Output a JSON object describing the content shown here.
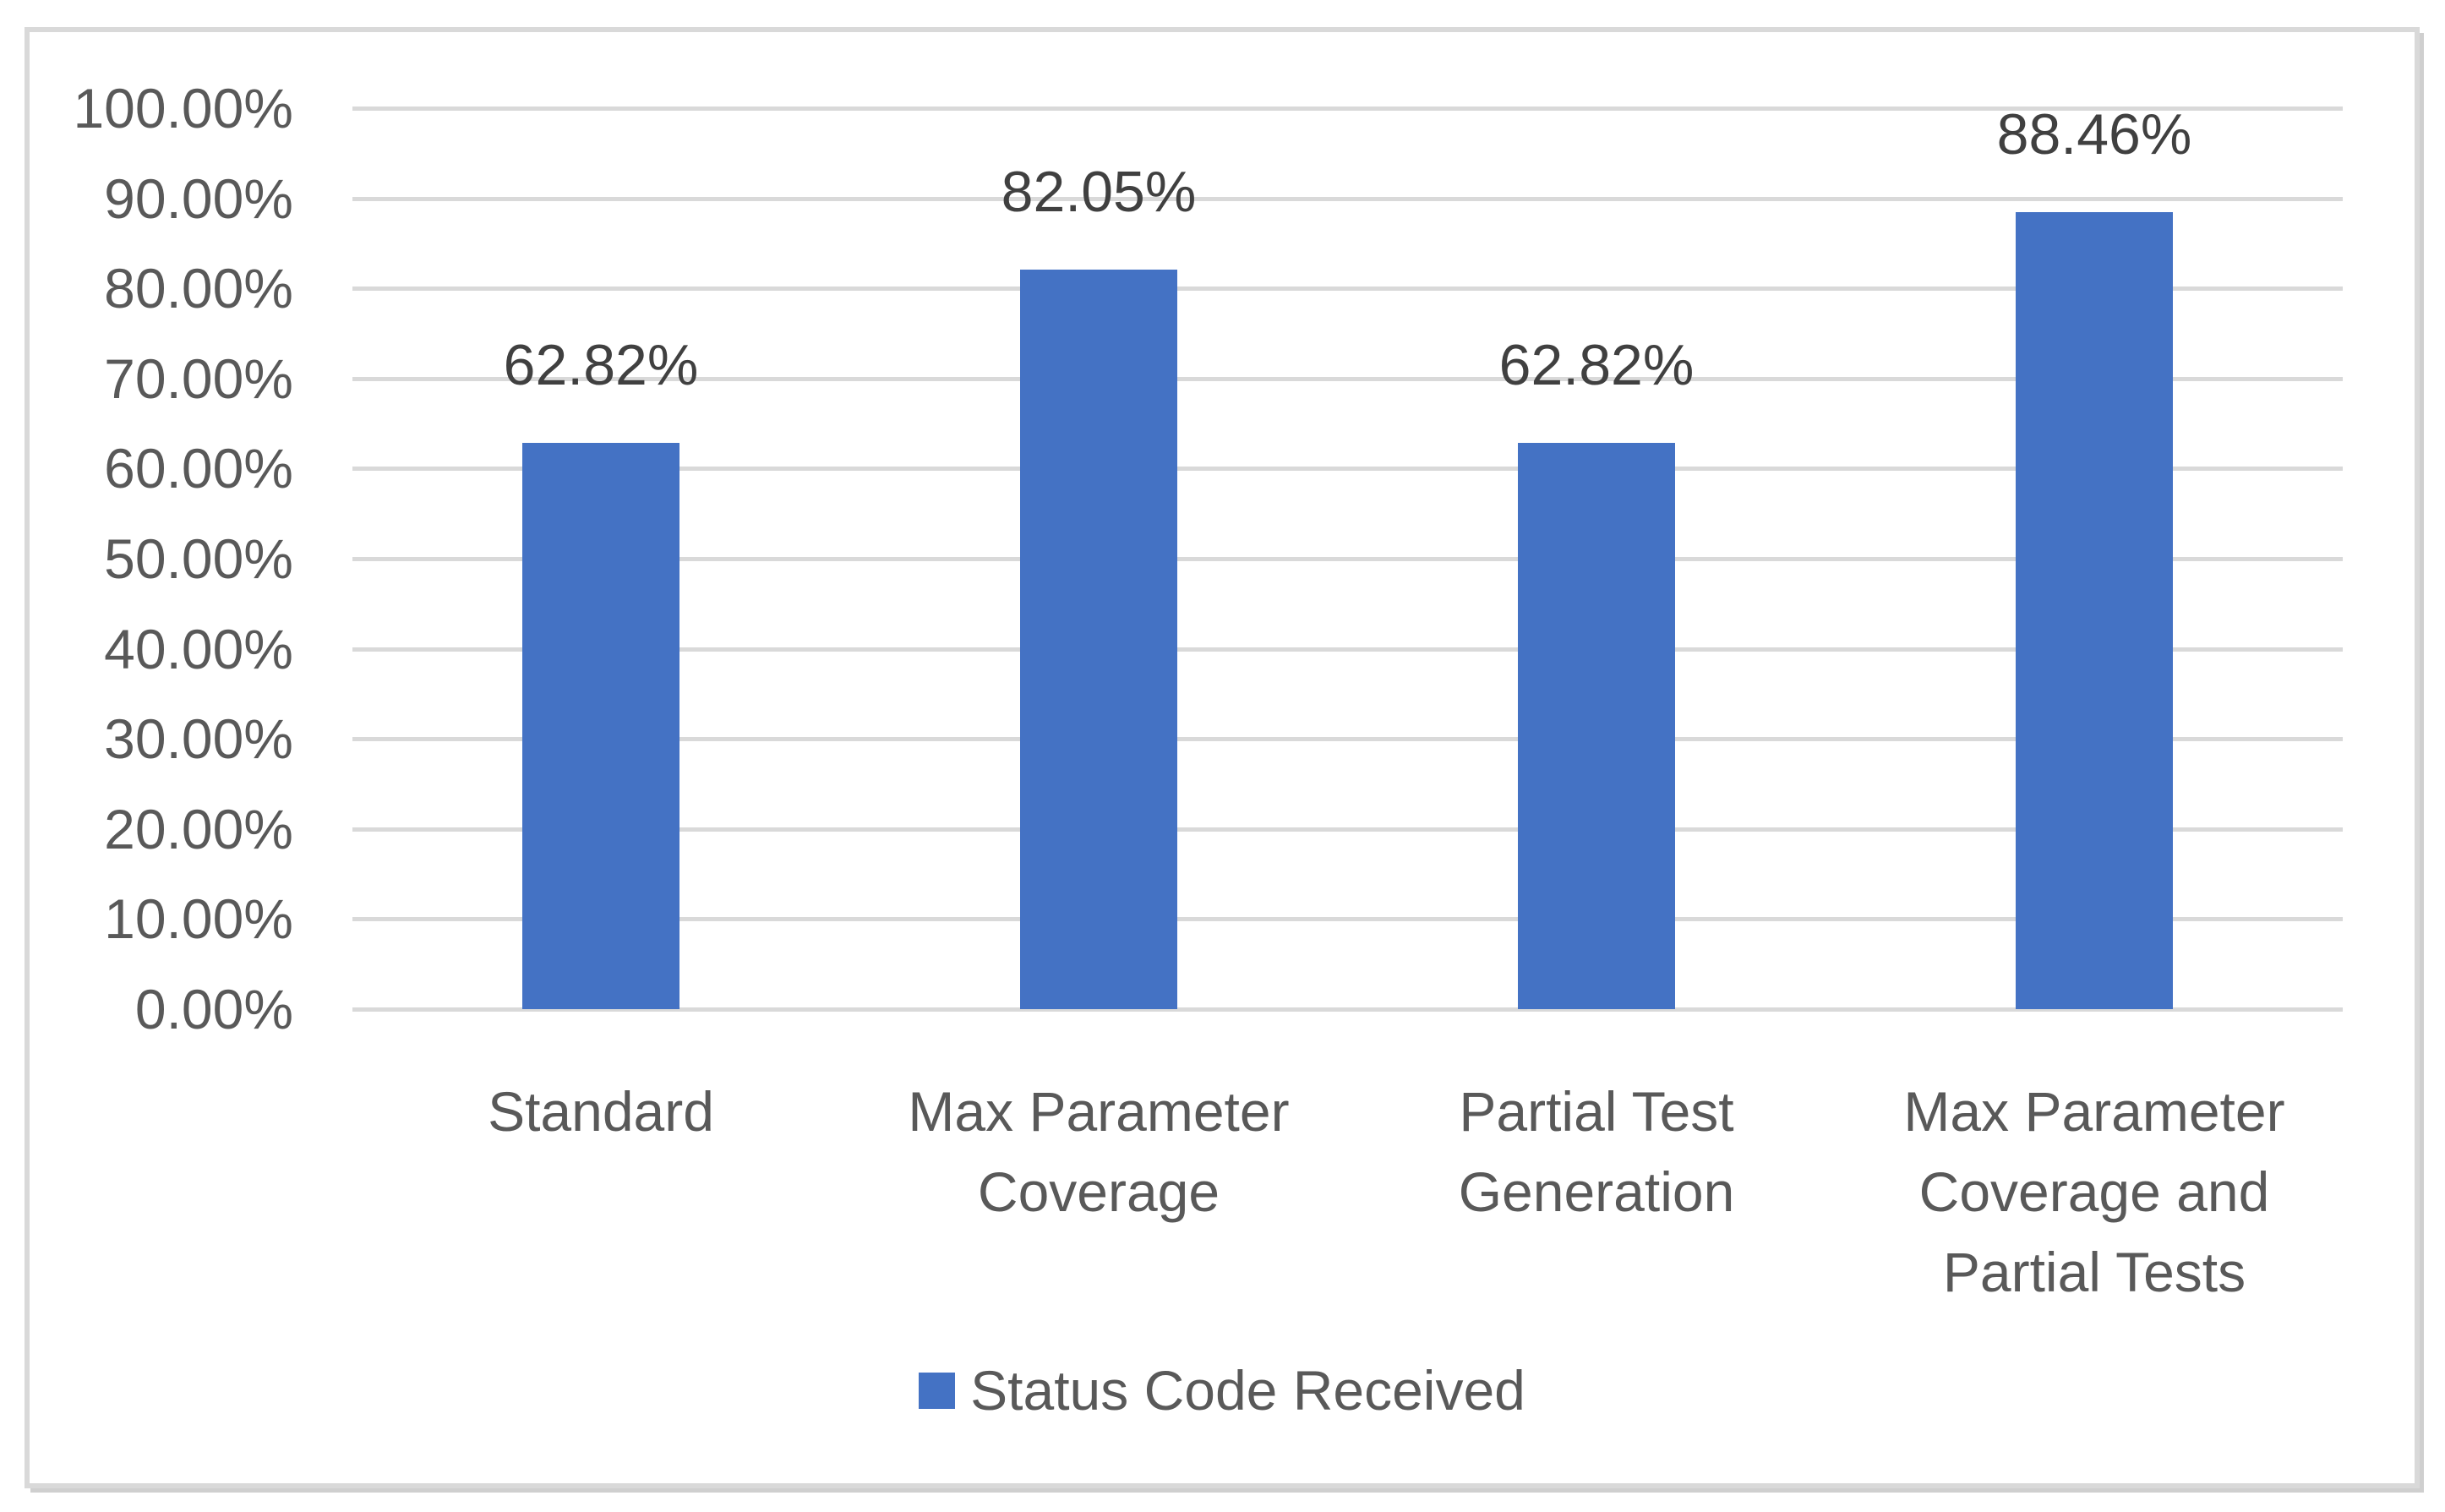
{
  "chart_data": {
    "type": "bar",
    "title": "",
    "xlabel": "",
    "ylabel": "",
    "categories": [
      "Standard",
      "Max Parameter Coverage",
      "Partial Test Generation",
      "Max Parameter Coverage and Partial Tests"
    ],
    "series": [
      {
        "name": "Status Code Received",
        "values": [
          62.82,
          82.05,
          62.82,
          88.46
        ],
        "color": "#4472C4"
      }
    ],
    "value_labels": [
      "62.82%",
      "82.05%",
      "62.82%",
      "88.46%"
    ],
    "ylim": [
      0,
      100
    ],
    "ytick_step": 10,
    "ytick_labels": [
      "0.00%",
      "10.00%",
      "20.00%",
      "30.00%",
      "40.00%",
      "50.00%",
      "60.00%",
      "70.00%",
      "80.00%",
      "90.00%",
      "100.00%"
    ],
    "grid": true,
    "legend_position": "bottom"
  },
  "legend": {
    "label": "Status Code Received",
    "marker_color": "#4472C4"
  },
  "colors": {
    "bar": "#4472C4",
    "gridline": "#d9d9d9",
    "frame_border": "#d9d9d9",
    "tick_text": "#595959",
    "category_text": "#595959",
    "data_label_text": "#404040",
    "legend_text": "#595959",
    "background": "#ffffff"
  }
}
